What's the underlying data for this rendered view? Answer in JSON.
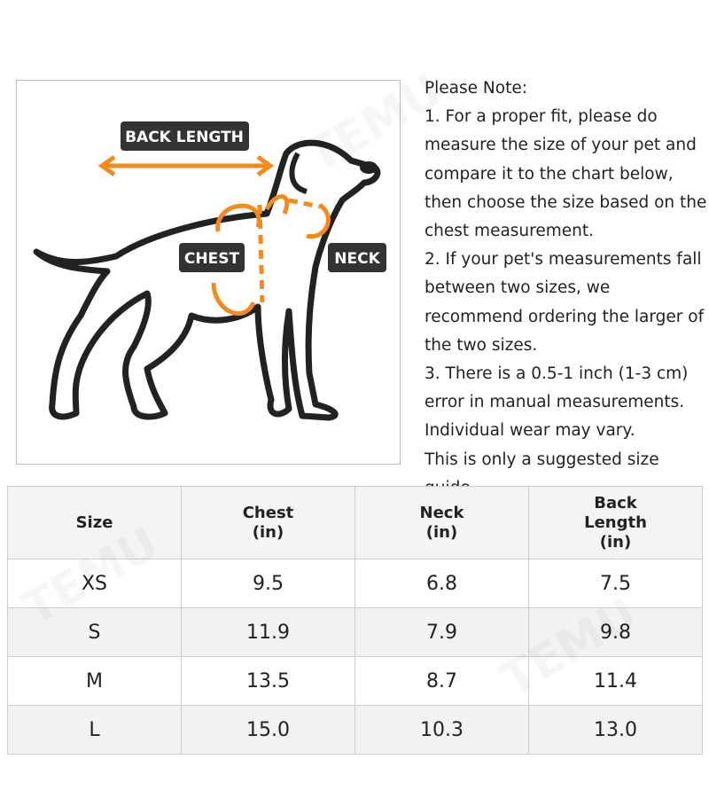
{
  "figure": {
    "labels": {
      "back_length": "BACK LENGTH",
      "chest": "CHEST",
      "neck": "NECK"
    }
  },
  "notes": [
    "Please Note:",
    "1. For a proper fit, please do measure the size of your pet and compare it to the chart below, then choose the size based on the chest measurement.",
    "2. If your pet's measurements fall between two sizes, we recommend ordering the larger of the two sizes.",
    "3. There is a 0.5-1 inch (1-3 cm) error in manual measurements. Individual wear may vary.",
    "This is only a suggested size guide."
  ],
  "table": {
    "header": [
      "Size",
      "Chest (in)",
      "Neck (in)",
      "Back Length (in)"
    ],
    "rows": [
      [
        "XS",
        "9.5",
        "6.8",
        "7.5"
      ],
      [
        "S",
        "11.9",
        "7.9",
        "9.8"
      ],
      [
        "M",
        "13.5",
        "8.7",
        "11.4"
      ],
      [
        "L",
        "15.0",
        "10.3",
        "13.0"
      ]
    ]
  },
  "watermark": "TEMU"
}
